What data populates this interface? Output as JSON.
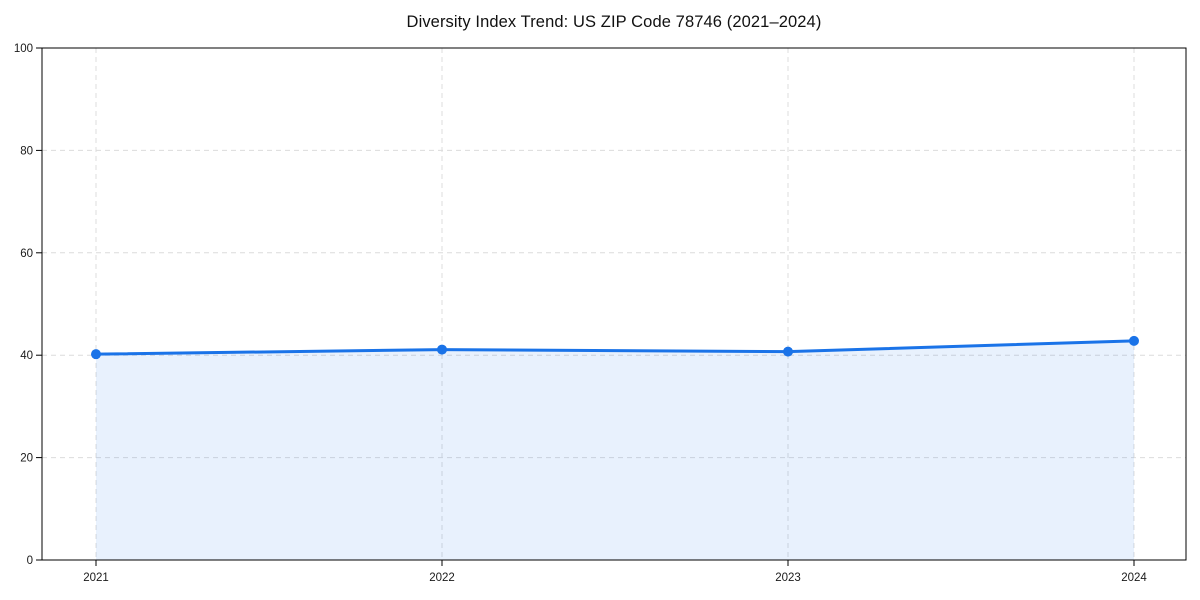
{
  "chart": {
    "title": "Diversity Index Trend: US ZIP Code 78746 (2021–2024)"
  },
  "chart_data": {
    "type": "area",
    "title": "Diversity Index Trend: US ZIP Code 78746 (2021–2024)",
    "series_name": "Diversity Index",
    "x": [
      2021,
      2022,
      2023,
      2024
    ],
    "values": [
      40.2,
      41.1,
      40.7,
      42.8
    ],
    "xtick_labels": [
      "2021",
      "2022",
      "2023",
      "2024"
    ],
    "yticks": [
      0,
      20,
      40,
      60,
      80,
      100
    ],
    "ytick_labels": [
      "0",
      "20",
      "40",
      "60",
      "80",
      "100"
    ],
    "ylim": [
      0,
      100
    ],
    "xlabel": "",
    "ylabel": "",
    "grid": "dashed",
    "legend_position": "none",
    "colors": {
      "line": "#1a73e8",
      "marker": "#1a73e8",
      "fill": "rgba(26,115,232,0.10)",
      "grid": "#dcdcdc",
      "axis": "#000000",
      "text": "#1a1a1a",
      "background": "#ffffff"
    }
  }
}
